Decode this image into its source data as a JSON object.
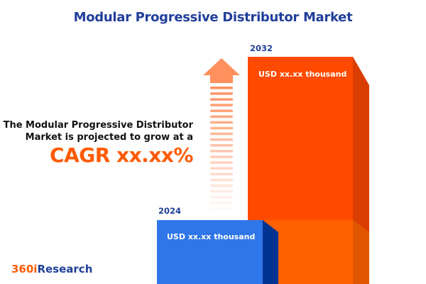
{
  "title": "Modular Progressive Distributor Market",
  "description_line1": "The Modular Progressive Distributor",
  "description_line2": "Market is projected to grow at a",
  "cagr": "CAGR xx.xx%",
  "bars": [
    {
      "year": "2024",
      "value_label": "USD xx.xx thousand",
      "color": "#2f76e8",
      "side_color": "#003292"
    },
    {
      "year": "2032",
      "value_label": "USD xx.xx thousand",
      "color": "#ff4a00",
      "side_color": "#d93e00"
    }
  ],
  "arrow_color": "#ff8f5c",
  "logo": {
    "part1": "360i",
    "part2": "Research",
    "color1": "#ff5a00",
    "color2": "#1f3f9a"
  }
}
